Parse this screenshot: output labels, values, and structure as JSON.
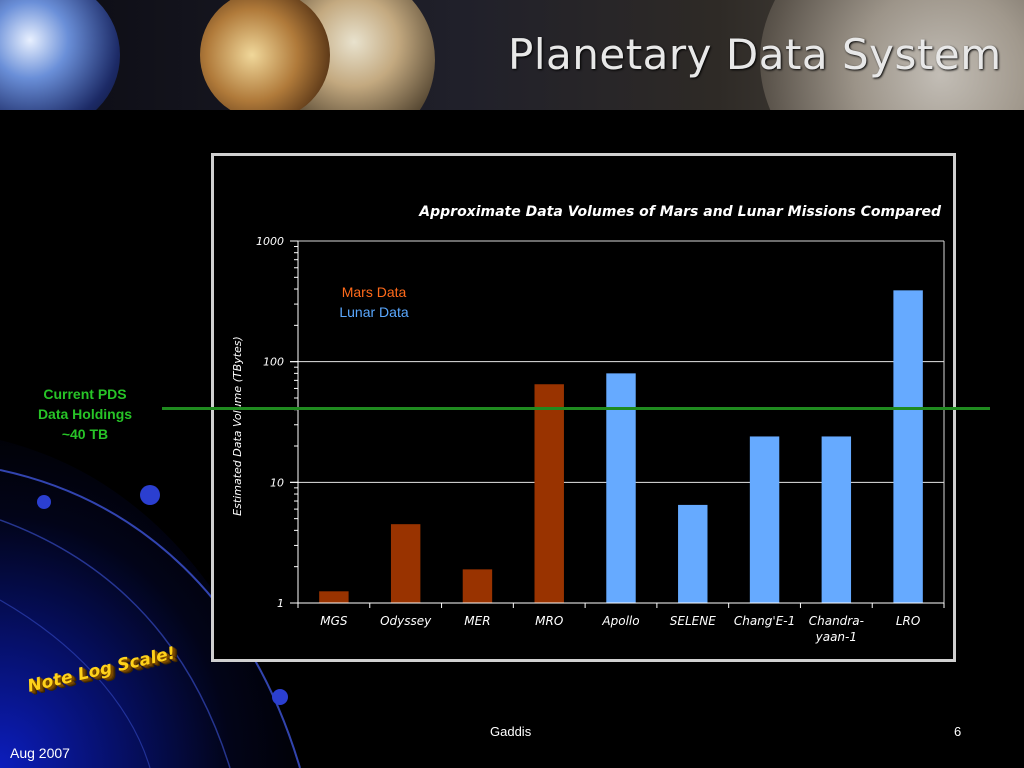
{
  "banner": {
    "title": "Planetary Data System"
  },
  "annotation": {
    "pds_holdings": "Current PDS\nData Holdings\n~40 TB",
    "pds_holdings_value_tb": 40,
    "log_note": "Note Log Scale!"
  },
  "footer": {
    "center": "Gaddis",
    "page": "6",
    "date": "Aug 2007"
  },
  "colors": {
    "mars": "#993300",
    "lunar": "#66aaff",
    "pds_line": "#1f8a1f",
    "pds_text": "#27c427"
  },
  "chart_data": {
    "type": "bar",
    "title": "Approximate Data Volumes of Mars and Lunar Missions Compared",
    "xlabel": "",
    "ylabel": "Estimated Data Volume (TBytes)",
    "yscale": "log",
    "ylim": [
      1,
      1000
    ],
    "yticks": [
      "1",
      "10",
      "100",
      "1000"
    ],
    "grid": true,
    "legend_placement": "top-left",
    "categories": [
      "MGS",
      "Odyssey",
      "MER",
      "MRO",
      "Apollo",
      "SELENE",
      "Chang'E-1",
      "Chandra-yaan-1",
      "LRO"
    ],
    "category_lines": [
      [
        "MGS"
      ],
      [
        "Odyssey"
      ],
      [
        "MER"
      ],
      [
        "MRO"
      ],
      [
        "Apollo"
      ],
      [
        "SELENE"
      ],
      [
        "Chang'E-1"
      ],
      [
        "Chandra-",
        "yaan-1"
      ],
      [
        "LRO"
      ]
    ],
    "series": [
      {
        "name": "Mars Data",
        "color": "#993300",
        "values": [
          1.25,
          4.5,
          1.9,
          65,
          null,
          null,
          null,
          null,
          null
        ]
      },
      {
        "name": "Lunar Data",
        "color": "#66aaff",
        "values": [
          null,
          null,
          null,
          null,
          80,
          6.5,
          24,
          24,
          390
        ]
      }
    ]
  }
}
